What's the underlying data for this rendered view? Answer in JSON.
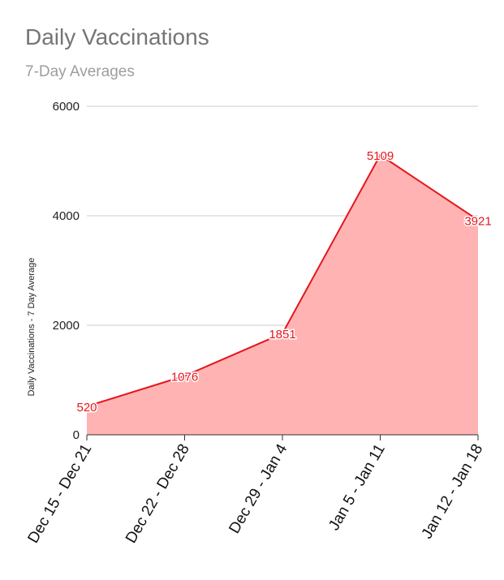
{
  "chart_data": {
    "type": "area",
    "title": "Daily Vaccinations",
    "subtitle": "7-Day Averages",
    "xlabel": "",
    "ylabel": "Daily Vaccinations - 7 Day Average",
    "categories": [
      "Dec 15 - Dec 21",
      "Dec 22 - Dec 28",
      "Dec 29 - Jan 4",
      "Jan 5 - Jan 11",
      "Jan 12 - Jan 18"
    ],
    "values": [
      520,
      1076,
      1851,
      5109,
      3921
    ],
    "data_labels": [
      "520",
      "1076",
      "1851",
      "5109",
      "3921"
    ],
    "ylim": [
      0,
      6000
    ],
    "yticks": [
      0,
      2000,
      4000,
      6000
    ],
    "ytick_labels": [
      "0",
      "2000",
      "4000",
      "6000"
    ],
    "grid": true,
    "legend": "none",
    "colors": {
      "line": "#e4161d",
      "fill": "#ffb3b3",
      "grid": "#cccccc",
      "title": "#757575",
      "subtitle": "#9e9e9e"
    }
  }
}
